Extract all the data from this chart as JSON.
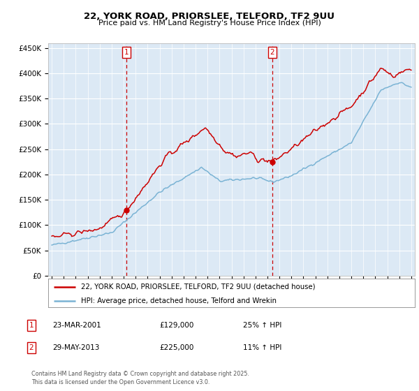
{
  "title_line1": "22, YORK ROAD, PRIORSLEE, TELFORD, TF2 9UU",
  "title_line2": "Price paid vs. HM Land Registry's House Price Index (HPI)",
  "background_color": "#ffffff",
  "plot_bg_color": "#dce9f5",
  "legend_entry1": "22, YORK ROAD, PRIORSLEE, TELFORD, TF2 9UU (detached house)",
  "legend_entry2": "HPI: Average price, detached house, Telford and Wrekin",
  "red_color": "#cc0000",
  "blue_color": "#7ab3d4",
  "annotation1_label": "1",
  "annotation1_date": "23-MAR-2001",
  "annotation1_price": "£129,000",
  "annotation1_hpi": "25% ↑ HPI",
  "annotation1_year": 2001.22,
  "annotation1_value": 129000,
  "annotation2_label": "2",
  "annotation2_date": "29-MAY-2013",
  "annotation2_price": "£225,000",
  "annotation2_hpi": "11% ↑ HPI",
  "annotation2_year": 2013.41,
  "annotation2_value": 225000,
  "footer": "Contains HM Land Registry data © Crown copyright and database right 2025.\nThis data is licensed under the Open Government Licence v3.0.",
  "ylim": [
    0,
    460000
  ],
  "yticks": [
    0,
    50000,
    100000,
    150000,
    200000,
    250000,
    300000,
    350000,
    400000,
    450000
  ],
  "xlim_start": 1994.7,
  "xlim_end": 2025.3
}
